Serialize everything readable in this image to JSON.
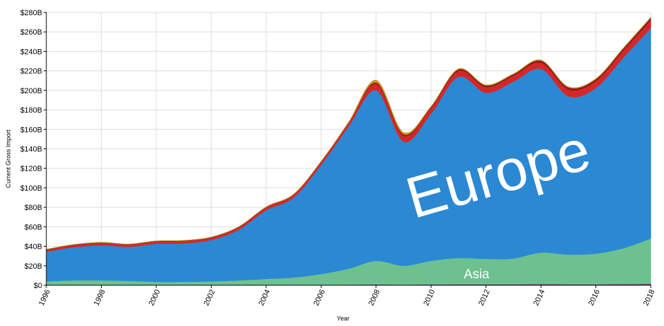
{
  "chart_data": {
    "type": "area",
    "stacked": true,
    "xlabel": "Year",
    "ylabel": "Current Gross Import",
    "xlim": [
      1996,
      2018
    ],
    "ylim": [
      0,
      280
    ],
    "x_ticks": [
      "1996",
      "1998",
      "2000",
      "2002",
      "2004",
      "2006",
      "2008",
      "2010",
      "2012",
      "2014",
      "2016",
      "2018"
    ],
    "y_ticks": [
      "$0",
      "$20B",
      "$40B",
      "$60B",
      "$80B",
      "$100B",
      "$120B",
      "$140B",
      "$160B",
      "$180B",
      "$200B",
      "$220B",
      "$240B",
      "$260B",
      "$280B"
    ],
    "grid": true,
    "x": [
      1996,
      1997,
      1998,
      1999,
      2000,
      2001,
      2002,
      2003,
      2004,
      2005,
      2006,
      2007,
      2008,
      2009,
      2010,
      2011,
      2012,
      2013,
      2014,
      2015,
      2016,
      2017,
      2018
    ],
    "series": [
      {
        "color": "#7b3f9e",
        "values": [
          0.3,
          0.3,
          0.3,
          0.3,
          0.3,
          0.3,
          0.3,
          0.3,
          0.3,
          0.4,
          0.5,
          0.6,
          0.8,
          0.6,
          0.8,
          1.0,
          1.0,
          1.0,
          1.2,
          1.0,
          1.0,
          1.2,
          1.5
        ]
      },
      {
        "color": "#6cc18f",
        "values": [
          3.7,
          4.7,
          4.7,
          4.2,
          3.2,
          3.2,
          3.7,
          4.7,
          6.2,
          7.6,
          11.0,
          16.4,
          24.2,
          19.4,
          24.2,
          27.0,
          26.0,
          26.5,
          32.3,
          30.5,
          31.5,
          36.8,
          46.5
        ]
      },
      {
        "color": "#2b88d3",
        "values": [
          30.5,
          34.0,
          36.0,
          35.0,
          39.0,
          39.5,
          42.5,
          52.0,
          70.5,
          82.0,
          112.0,
          146.0,
          175.0,
          127.5,
          151.0,
          186.0,
          170.5,
          181.5,
          188.5,
          162.5,
          170.0,
          195.5,
          216.0
        ]
      },
      {
        "color": "#d62728",
        "values": [
          2.0,
          2.4,
          2.6,
          2.4,
          2.6,
          2.6,
          2.6,
          2.7,
          3.0,
          3.0,
          3.0,
          3.4,
          6.5,
          6.0,
          6.0,
          6.0,
          6.0,
          6.0,
          6.5,
          7.0,
          7.0,
          7.5,
          8.0
        ]
      },
      {
        "color": "#8b1a1a",
        "values": [
          0.2,
          0.2,
          0.2,
          0.2,
          0.2,
          0.2,
          0.2,
          0.2,
          0.2,
          0.2,
          0.3,
          0.4,
          1.5,
          1.5,
          1.0,
          1.5,
          1.5,
          1.5,
          2.0,
          2.0,
          2.0,
          2.0,
          2.5
        ]
      },
      {
        "color": "#e08a1e",
        "values": [
          0.2,
          0.2,
          0.2,
          0.2,
          0.2,
          0.2,
          0.2,
          0.2,
          0.2,
          0.3,
          0.4,
          0.6,
          2.0,
          1.5,
          0.5,
          0.5,
          0.5,
          0.5,
          0.5,
          0.5,
          0.5,
          0.5,
          0.5
        ]
      },
      {
        "color": "#9c9c2a",
        "values": [
          0.1,
          0.1,
          0.1,
          0.1,
          0.1,
          0.1,
          0.1,
          0.1,
          0.1,
          0.1,
          0.1,
          0.1,
          0.5,
          0.4,
          0.2,
          0.2,
          0.2,
          0.2,
          0.2,
          0.2,
          0.2,
          0.2,
          0.2
        ]
      }
    ],
    "annotations": [
      {
        "text": "Europe",
        "series_index": 2
      },
      {
        "text": "Asia",
        "series_index": 1
      }
    ]
  }
}
